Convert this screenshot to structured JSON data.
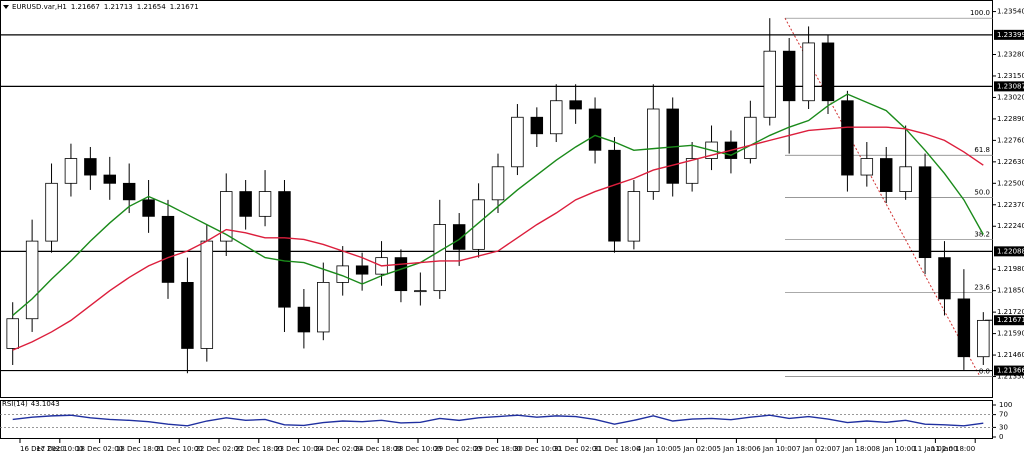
{
  "chart_data": [
    {
      "type": "candlestick",
      "symbol": "EURUSD.var,H1",
      "header_ohlc": [
        1.21667,
        1.21713,
        1.21654,
        1.21671
      ],
      "ylim": [
        1.212,
        1.2361
      ],
      "yticks": [
        {
          "value": 1.2354,
          "label": "1.23540"
        },
        {
          "value": 1.2328,
          "label": "1.23280"
        },
        {
          "value": 1.2315,
          "label": "1.23150"
        },
        {
          "value": 1.2302,
          "label": "1.23020"
        },
        {
          "value": 1.2289,
          "label": "1.22890"
        },
        {
          "value": 1.2276,
          "label": "1.22760"
        },
        {
          "value": 1.2263,
          "label": "1.22630"
        },
        {
          "value": 1.225,
          "label": "1.22500"
        },
        {
          "value": 1.2237,
          "label": "1.22370"
        },
        {
          "value": 1.2224,
          "label": "1.22240"
        },
        {
          "value": 1.2198,
          "label": "1.21980"
        },
        {
          "value": 1.2185,
          "label": "1.21850"
        },
        {
          "value": 1.2172,
          "label": "1.21720"
        },
        {
          "value": 1.2159,
          "label": "1.21590"
        },
        {
          "value": 1.2146,
          "label": "1.21460"
        },
        {
          "value": 1.2133,
          "label": "1.21330"
        }
      ],
      "hlines": [
        1.23399,
        1.23087,
        1.22088,
        1.21366
      ],
      "current_price": 1.21671,
      "fib": [
        {
          "value": 1.235,
          "label": "100.0"
        },
        {
          "value": 1.2267,
          "label": "61.8"
        },
        {
          "value": 1.22415,
          "label": "50.0"
        },
        {
          "value": 1.2216,
          "label": "38.2"
        },
        {
          "value": 1.2184,
          "label": "23.6"
        },
        {
          "value": 1.2133,
          "label": "0.0"
        }
      ],
      "xtick_labels": [
        "16 Dec 2020",
        "17 Dec 10:00",
        "18 Dec 02:00",
        "18 Dec 18:00",
        "21 Dec 10:00",
        "22 Dec 02:00",
        "22 Dec 18:00",
        "23 Dec 10:00",
        "24 Dec 02:00",
        "24 Dec 18:00",
        "28 Dec 10:00",
        "29 Dec 02:00",
        "29 Dec 18:00",
        "30 Dec 10:00",
        "31 Dec 02:00",
        "31 Dec 18:00",
        "4 Jan 10:00",
        "5 Jan 02:00",
        "5 Jan 18:00",
        "6 Jan 10:00",
        "7 Jan 02:00",
        "7 Jan 18:00",
        "8 Jan 10:00",
        "11 Jan 02:00",
        "11 Jan 18:00"
      ],
      "open": [
        1.215,
        1.2168,
        1.2215,
        1.225,
        1.2265,
        1.2255,
        1.225,
        1.224,
        1.223,
        1.219,
        1.215,
        1.2215,
        1.2245,
        1.223,
        1.2245,
        1.2175,
        1.216,
        1.219,
        1.22,
        1.2195,
        1.2205,
        1.2185,
        1.2185,
        1.2225,
        1.221,
        1.224,
        1.226,
        1.229,
        1.228,
        1.23,
        1.2295,
        1.227,
        1.2215,
        1.2245,
        1.2295,
        1.225,
        1.2265,
        1.2275,
        1.2265,
        1.229,
        1.233,
        1.23,
        1.2335,
        1.23,
        1.2255,
        1.2265,
        1.2245,
        1.226,
        1.2205,
        1.218,
        1.2145
      ],
      "high": [
        1.2178,
        1.2228,
        1.2262,
        1.2274,
        1.2272,
        1.2266,
        1.2262,
        1.2252,
        1.224,
        1.2205,
        1.2225,
        1.2256,
        1.2252,
        1.2258,
        1.2252,
        1.2186,
        1.2202,
        1.2212,
        1.2208,
        1.2215,
        1.221,
        1.2196,
        1.224,
        1.2232,
        1.225,
        1.2268,
        1.2298,
        1.2296,
        1.231,
        1.231,
        1.2302,
        1.2278,
        1.2252,
        1.231,
        1.2302,
        1.2275,
        1.2285,
        1.2282,
        1.23,
        1.235,
        1.2338,
        1.2345,
        1.234,
        1.2306,
        1.2275,
        1.2272,
        1.2285,
        1.2268,
        1.2215,
        1.2198,
        1.2172
      ],
      "low": [
        1.214,
        1.216,
        1.2208,
        1.2242,
        1.2246,
        1.224,
        1.2232,
        1.222,
        1.218,
        1.2135,
        1.2142,
        1.2206,
        1.2222,
        1.2224,
        1.216,
        1.215,
        1.2155,
        1.2182,
        1.2185,
        1.2188,
        1.2178,
        1.2176,
        1.218,
        1.22,
        1.2205,
        1.2232,
        1.2255,
        1.2272,
        1.2275,
        1.2286,
        1.2262,
        1.2208,
        1.221,
        1.224,
        1.2242,
        1.2245,
        1.2258,
        1.2256,
        1.2262,
        1.2285,
        1.2268,
        1.2295,
        1.2292,
        1.2245,
        1.2248,
        1.2238,
        1.224,
        1.2195,
        1.217,
        1.2137,
        1.214
      ],
      "close": [
        1.2168,
        1.2215,
        1.225,
        1.2265,
        1.2255,
        1.225,
        1.224,
        1.223,
        1.219,
        1.215,
        1.2215,
        1.2245,
        1.223,
        1.2245,
        1.2175,
        1.216,
        1.219,
        1.22,
        1.2195,
        1.2205,
        1.2185,
        1.2185,
        1.2225,
        1.221,
        1.224,
        1.226,
        1.229,
        1.228,
        1.23,
        1.2295,
        1.227,
        1.2215,
        1.2245,
        1.2295,
        1.225,
        1.2265,
        1.2275,
        1.2265,
        1.229,
        1.233,
        1.23,
        1.2335,
        1.23,
        1.2255,
        1.2265,
        1.2245,
        1.226,
        1.2205,
        1.218,
        1.2145,
        1.2167
      ],
      "series": [
        {
          "color": "#1a8a1a",
          "values": [
            1.217,
            1.218,
            1.2192,
            1.2203,
            1.2215,
            1.2226,
            1.2236,
            1.2242,
            1.2237,
            1.2231,
            1.2225,
            1.2219,
            1.2212,
            1.2205,
            1.2203,
            1.2202,
            1.2198,
            1.2194,
            1.2189,
            1.2194,
            1.2198,
            1.2202,
            1.2209,
            1.2216,
            1.2226,
            1.2236,
            1.2246,
            1.2255,
            1.2264,
            1.2272,
            1.2279,
            1.2275,
            1.227,
            1.2271,
            1.2272,
            1.2273,
            1.227,
            1.2267,
            1.2273,
            1.2279,
            1.2284,
            1.2288,
            1.2297,
            1.2304,
            1.2299,
            1.2294,
            1.2283,
            1.227,
            1.2256,
            1.224,
            1.2219
          ]
        },
        {
          "color": "#dc1e3c",
          "values": [
            1.2149,
            1.2154,
            1.216,
            1.2167,
            1.2176,
            1.2185,
            1.2193,
            1.22,
            1.2205,
            1.2209,
            1.2215,
            1.2222,
            1.222,
            1.2217,
            1.2217,
            1.2216,
            1.2213,
            1.2209,
            1.2205,
            1.22,
            1.2201,
            1.2202,
            1.2203,
            1.2203,
            1.2206,
            1.2209,
            1.2217,
            1.2225,
            1.2232,
            1.224,
            1.2245,
            1.2249,
            1.2253,
            1.2258,
            1.2261,
            1.2264,
            1.2267,
            1.227,
            1.2273,
            1.2276,
            1.2279,
            1.2282,
            1.2283,
            1.2284,
            1.2284,
            1.2284,
            1.2283,
            1.228,
            1.2276,
            1.2269,
            1.2261
          ]
        }
      ]
    },
    {
      "type": "line",
      "title": "RSI(14)",
      "ylim": [
        0,
        100
      ],
      "yticks": [
        100,
        70,
        30,
        0
      ],
      "levels": [
        70,
        30
      ],
      "series": [
        {
          "color": "#2030a0",
          "values": [
            55,
            62,
            66,
            68,
            60,
            55,
            52,
            48,
            40,
            35,
            50,
            60,
            52,
            55,
            38,
            36,
            45,
            50,
            48,
            52,
            44,
            46,
            58,
            52,
            60,
            64,
            68,
            62,
            66,
            64,
            55,
            40,
            52,
            66,
            50,
            56,
            58,
            54,
            62,
            68,
            58,
            64,
            56,
            45,
            50,
            46,
            52,
            40,
            38,
            35,
            43.1043
          ]
        }
      ]
    }
  ]
}
